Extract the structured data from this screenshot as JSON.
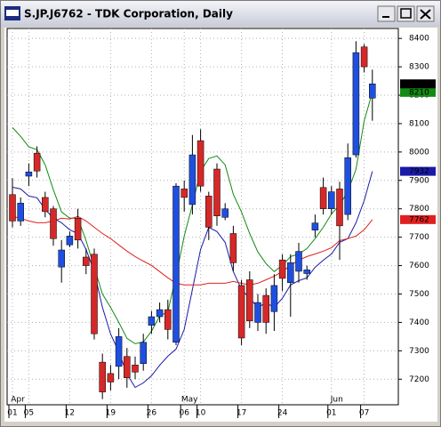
{
  "chart_data": {
    "type": "candlestick",
    "title": "S.JP.J6762 - TDK Corporation, Daily",
    "categories": [
      "01",
      null,
      "05",
      null,
      null,
      null,
      null,
      "12",
      null,
      null,
      null,
      null,
      "19",
      null,
      null,
      null,
      null,
      "26",
      null,
      null,
      null,
      "06",
      null,
      "10",
      null,
      null,
      null,
      null,
      "17",
      null,
      null,
      null,
      null,
      "24",
      null,
      null,
      null,
      null,
      null,
      "01",
      null,
      null,
      null,
      "07",
      null
    ],
    "months": [
      "Apr",
      null,
      null,
      null,
      null,
      null,
      null,
      null,
      null,
      null,
      null,
      null,
      null,
      null,
      null,
      null,
      null,
      null,
      null,
      null,
      null,
      "May",
      null,
      null,
      null,
      null,
      null,
      null,
      null,
      null,
      null,
      null,
      null,
      null,
      null,
      null,
      null,
      null,
      null,
      "Jun",
      null,
      null,
      null,
      null,
      null
    ],
    "open": [
      7850,
      7757,
      7915,
      7996,
      7840,
      7800,
      7595,
      7673,
      7767,
      7630,
      7640,
      7260,
      7220,
      7245,
      7280,
      7250,
      7255,
      7390,
      7420,
      7445,
      7330,
      7870,
      7815,
      8040,
      7845,
      7940,
      7770,
      7713,
      7530,
      7550,
      7400,
      7495,
      7438,
      7620,
      7540,
      7580,
      7572,
      7725,
      7875,
      7800,
      7870,
      7780,
      7990,
      8370,
      8190
    ],
    "high": [
      7908,
      7840,
      7960,
      8020,
      7860,
      7810,
      7690,
      7720,
      7800,
      7660,
      7660,
      7290,
      7250,
      7380,
      7310,
      7280,
      7360,
      7440,
      7470,
      7480,
      7890,
      7900,
      8060,
      8080,
      7860,
      7960,
      7820,
      7740,
      7550,
      7580,
      7500,
      7520,
      7570,
      7640,
      7640,
      7680,
      7600,
      7780,
      7910,
      7880,
      7895,
      8030,
      8390,
      8380,
      8290
    ],
    "low": [
      7735,
      7740,
      7880,
      7910,
      7770,
      7670,
      7540,
      7665,
      7660,
      7570,
      7340,
      7130,
      7160,
      7200,
      7170,
      7200,
      7230,
      7360,
      7400,
      7340,
      7320,
      7790,
      7780,
      7860,
      7690,
      7740,
      7760,
      7580,
      7320,
      7380,
      7370,
      7360,
      7370,
      7510,
      7420,
      7540,
      7550,
      7700,
      7780,
      7780,
      7620,
      7760,
      7980,
      8280,
      8110
    ],
    "close": [
      7757,
      7820,
      7930,
      7933,
      7790,
      7695,
      7655,
      7704,
      7690,
      7600,
      7360,
      7155,
      7190,
      7350,
      7205,
      7225,
      7330,
      7420,
      7445,
      7375,
      7880,
      7840,
      7990,
      7880,
      7735,
      7775,
      7800,
      7610,
      7345,
      7405,
      7470,
      7400,
      7530,
      7555,
      7610,
      7650,
      7585,
      7750,
      7800,
      7860,
      7740,
      7980,
      8350,
      8300,
      8240
    ],
    "up_color": "#1f4fe0",
    "down_color": "#d62828",
    "close_label_color": "#000000",
    "series": [
      {
        "color": "#138a13",
        "values": [
          8086,
          8055,
          8018,
          8008,
          7955,
          7867,
          7789,
          7767,
          7767,
          7688,
          7594,
          7500,
          7453,
          7400,
          7344,
          7325,
          7331,
          7369,
          7422,
          7438,
          7563,
          7704,
          7814,
          7933,
          7977,
          7986,
          7955,
          7851,
          7789,
          7713,
          7648,
          7607,
          7579,
          7601,
          7632,
          7641,
          7660,
          7695,
          7735,
          7782,
          7814,
          7861,
          7939,
          8110,
          8210
        ]
      },
      {
        "color": "#1a1aa8",
        "values": [
          7876,
          7870,
          7845,
          7839,
          7798,
          7767,
          7751,
          7726,
          7713,
          7657,
          7579,
          7453,
          7359,
          7296,
          7218,
          7171,
          7187,
          7212,
          7249,
          7281,
          7306,
          7375,
          7516,
          7657,
          7735,
          7720,
          7682,
          7579,
          7516,
          7485,
          7453,
          7469,
          7453,
          7485,
          7532,
          7547,
          7557,
          7594,
          7619,
          7641,
          7682,
          7695,
          7751,
          7829,
          7932
        ]
      },
      {
        "color": "#e02020",
        "values": [
          7773,
          7767,
          7757,
          7751,
          7751,
          7757,
          7767,
          7764,
          7773,
          7757,
          7735,
          7713,
          7695,
          7673,
          7651,
          7632,
          7616,
          7601,
          7579,
          7557,
          7538,
          7532,
          7532,
          7532,
          7538,
          7538,
          7538,
          7544,
          7538,
          7532,
          7538,
          7550,
          7563,
          7579,
          7601,
          7619,
          7632,
          7641,
          7651,
          7663,
          7688,
          7695,
          7704,
          7726,
          7762
        ]
      }
    ],
    "ylim": [
      7110,
      8435
    ],
    "yticks": [
      7200,
      7300,
      7400,
      7500,
      7600,
      7700,
      7800,
      7900,
      8000,
      8100,
      8200,
      8300,
      8400
    ],
    "grid": true
  }
}
